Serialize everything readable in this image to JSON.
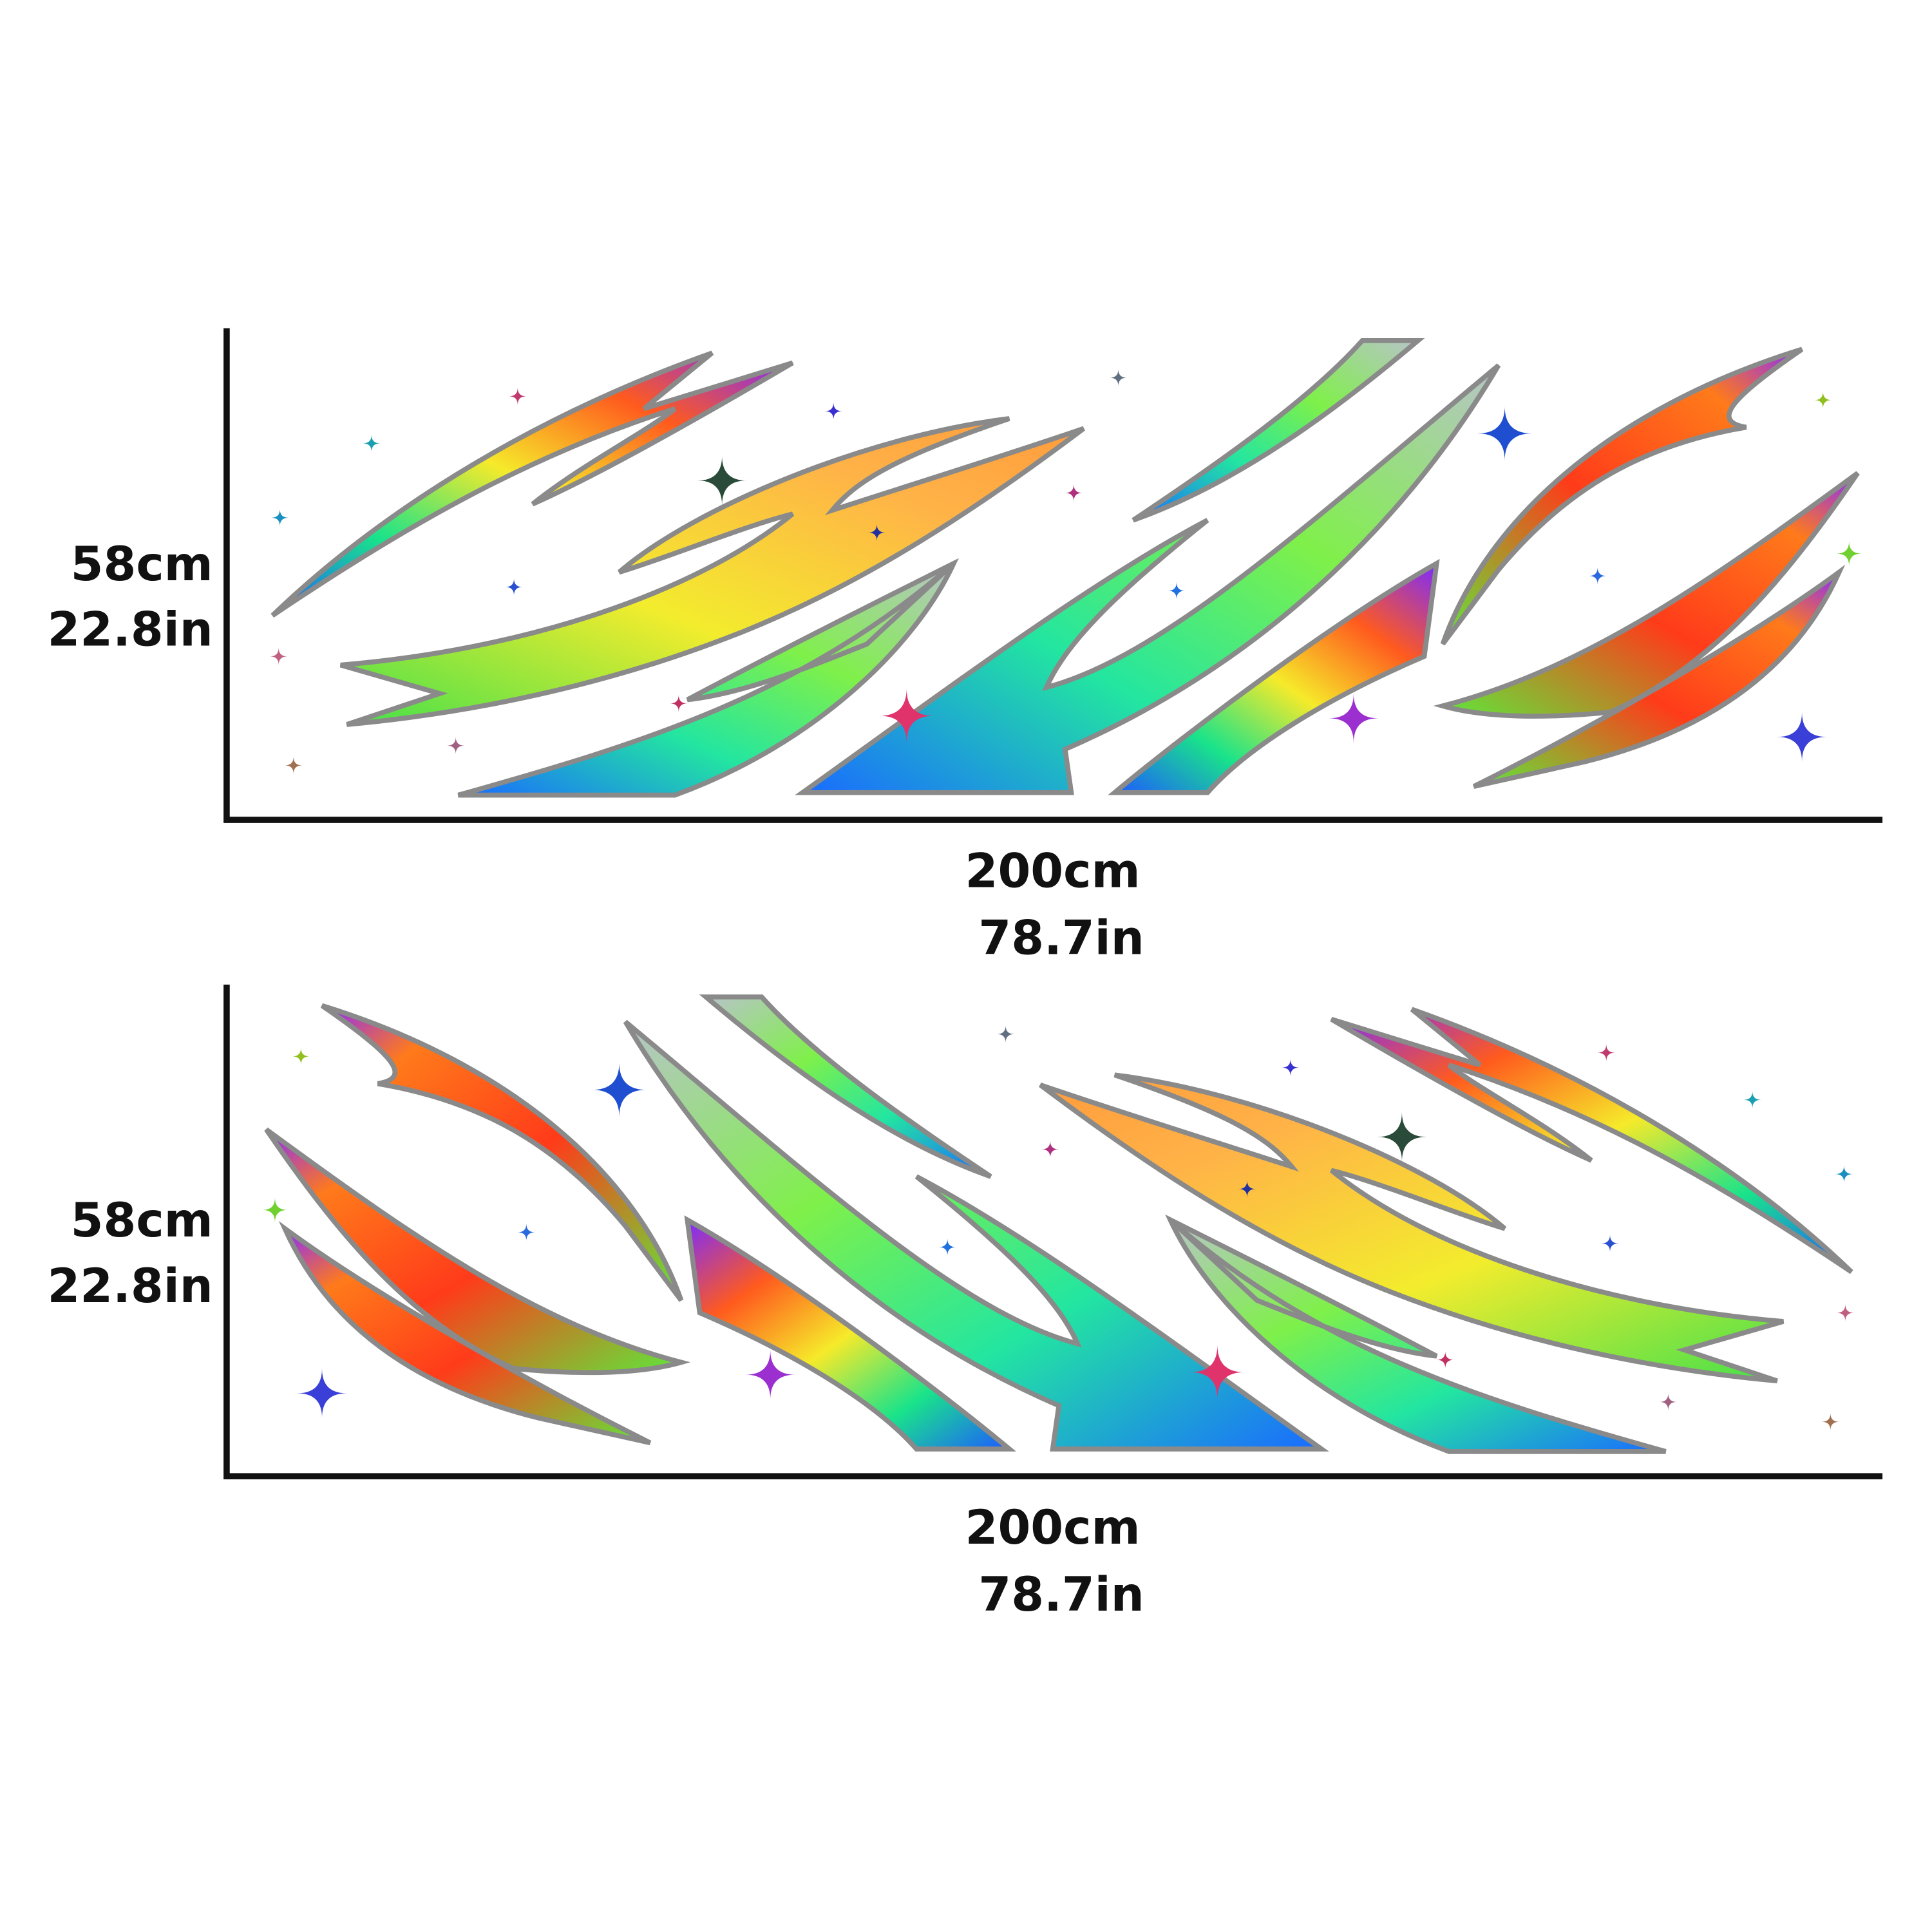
{
  "panels": [
    {
      "height": [
        "58cm",
        "22.8in"
      ],
      "width": [
        "200cm",
        "78.7in"
      ]
    },
    {
      "height": [
        "58cm",
        "22.8in"
      ],
      "width": [
        "200cm",
        "78.7in"
      ]
    }
  ]
}
